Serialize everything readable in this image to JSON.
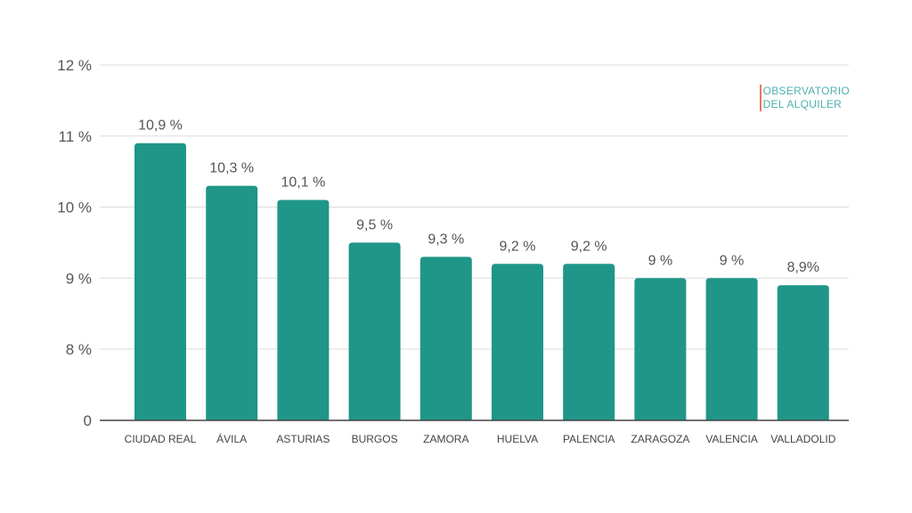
{
  "logo": {
    "line1": "OBSERVATORIO",
    "line2": "DEL ALQUILER",
    "colors": {
      "text": "#4fb0b0",
      "accent": "#e07a5f"
    }
  },
  "chart_data": {
    "type": "bar",
    "categories": [
      "CIUDAD REAL",
      "ÁVILA",
      "ASTURIAS",
      "BURGOS",
      "ZAMORA",
      "HUELVA",
      "PALENCIA",
      "ZARAGOZA",
      "VALENCIA",
      "VALLADOLID"
    ],
    "values": [
      10.9,
      10.3,
      10.1,
      9.5,
      9.3,
      9.2,
      9.2,
      9.0,
      9.0,
      8.9
    ],
    "data_labels": [
      "10,9 %",
      "10,3 %",
      "10,1 %",
      "9,5 %",
      "9,3 %",
      "9,2 %",
      "9,2 %",
      "9 %",
      "9 %",
      "8,9%"
    ],
    "y_ticks": [
      {
        "value": 0,
        "label": "0"
      },
      {
        "value": 8,
        "label": "8 %"
      },
      {
        "value": 9,
        "label": "9 %"
      },
      {
        "value": 10,
        "label": "10 %"
      },
      {
        "value": 11,
        "label": "11 %"
      },
      {
        "value": 12,
        "label": "12 %"
      }
    ],
    "axis_break": {
      "from": 0,
      "to": 7
    },
    "ylim": [
      0,
      12
    ],
    "title": "",
    "xlabel": "",
    "ylabel": "",
    "grid": true,
    "legend": "none",
    "bar_color": "#1f9688"
  }
}
